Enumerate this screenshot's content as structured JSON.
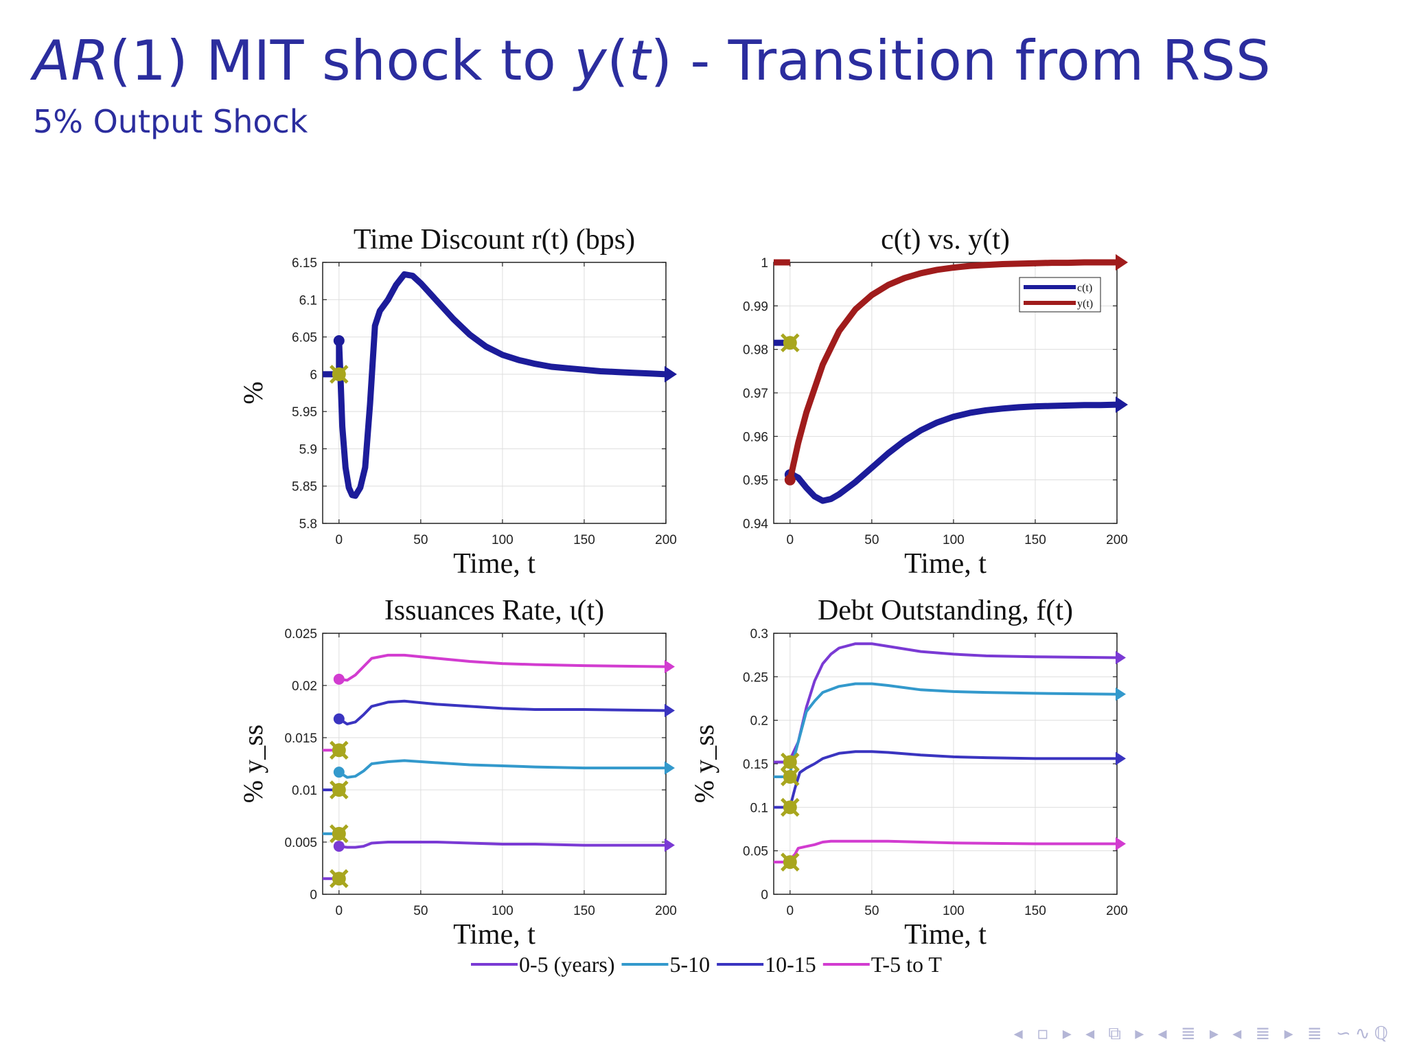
{
  "slide": {
    "title_prefix_math": "AR",
    "title_mid": "(1) MIT shock to ",
    "title_y": "y",
    "title_paren_open": "(",
    "title_t": "t",
    "title_paren_close": ")",
    "title_suffix": " - Transition from RSS",
    "subtitle": "5% Output Shock",
    "nav_symbols": "◂ ▫ ▸ ◂ ⧉ ▸ ◂ ≣ ▸ ◂ ≣ ▸   ≣   ∽∿ℚ"
  },
  "colors": {
    "title": "#2b2d9e",
    "navy": "#1c1c9a",
    "red": "#a01c1c",
    "olive": "#a8a61e",
    "purple": "#7a3ad4",
    "teal": "#3399cc",
    "indigo": "#3a34c0",
    "magenta": "#d23cd0",
    "grid": "#dedede"
  },
  "chart_data": [
    {
      "type": "line",
      "title": "Time Discount r(t) (bps)",
      "xlabel": "Time, t",
      "ylabel": "%",
      "xlim": [
        -10,
        200
      ],
      "ylim": [
        5.8,
        6.15
      ],
      "xticks": [
        "0",
        "50",
        "100",
        "150",
        "200"
      ],
      "yticks": [
        "5.8",
        "5.85",
        "5.9",
        "5.95",
        "6",
        "6.05",
        "6.1",
        "6.15"
      ],
      "grid": true,
      "series": [
        {
          "color_key": "navy",
          "x": [
            0,
            1,
            2,
            4,
            6,
            8,
            10,
            13,
            16,
            19,
            22,
            25,
            30,
            35,
            40,
            45,
            50,
            60,
            70,
            80,
            90,
            100,
            110,
            120,
            130,
            140,
            150,
            160,
            170,
            180,
            190,
            200
          ],
          "y": [
            6.045,
            5.99,
            5.93,
            5.875,
            5.848,
            5.838,
            5.837,
            5.848,
            5.875,
            5.96,
            6.065,
            6.085,
            6.1,
            6.12,
            6.134,
            6.132,
            6.122,
            6.098,
            6.074,
            6.053,
            6.037,
            6.026,
            6.019,
            6.014,
            6.01,
            6.008,
            6.006,
            6.004,
            6.003,
            6.002,
            6.001,
            6.0
          ],
          "pre_value": 6.0,
          "start_marker": 6.045,
          "ss_marker": 6.0
        }
      ]
    },
    {
      "type": "line",
      "title": "c(t) vs. y(t)",
      "xlabel": "Time, t",
      "xlim": [
        -10,
        200
      ],
      "ylim": [
        0.94,
        1.0
      ],
      "xticks": [
        "0",
        "50",
        "100",
        "150",
        "200"
      ],
      "yticks": [
        "0.94",
        "0.95",
        "0.96",
        "0.97",
        "0.98",
        "0.99",
        "1"
      ],
      "grid": true,
      "legend_position": "top-right",
      "series": [
        {
          "name": "c(t)",
          "color_key": "navy",
          "x": [
            0,
            5,
            10,
            15,
            20,
            25,
            30,
            40,
            50,
            60,
            70,
            80,
            90,
            100,
            110,
            120,
            130,
            140,
            150,
            160,
            170,
            180,
            190,
            200
          ],
          "y": [
            0.9515,
            0.9505,
            0.9482,
            0.9462,
            0.9452,
            0.9456,
            0.9467,
            0.9495,
            0.9528,
            0.9561,
            0.959,
            0.9614,
            0.9632,
            0.9645,
            0.9654,
            0.966,
            0.9664,
            0.9667,
            0.9669,
            0.967,
            0.9671,
            0.9672,
            0.9672,
            0.9673
          ],
          "pre_value": 0.9815,
          "start_marker": 0.9512
        },
        {
          "name": "y(t)",
          "color_key": "red",
          "x": [
            0,
            5,
            10,
            20,
            30,
            40,
            50,
            60,
            70,
            80,
            90,
            100,
            110,
            120,
            130,
            140,
            150,
            160,
            170,
            180,
            190,
            200
          ],
          "y": [
            0.95,
            0.9585,
            0.9655,
            0.9765,
            0.9842,
            0.9892,
            0.9925,
            0.9948,
            0.9964,
            0.9975,
            0.9983,
            0.9988,
            0.9992,
            0.9994,
            0.9996,
            0.9997,
            0.9998,
            0.9999,
            0.9999,
            1.0,
            1.0,
            1.0
          ],
          "pre_value": 1.0,
          "start_marker": 0.95
        }
      ],
      "ss_marker": 0.9815
    },
    {
      "type": "line",
      "title": "Issuances Rate, ι(t)",
      "xlabel": "Time, t",
      "ylabel": "% y_ss",
      "xlim": [
        -10,
        200
      ],
      "ylim": [
        0,
        0.025
      ],
      "xticks": [
        "0",
        "50",
        "100",
        "150",
        "200"
      ],
      "yticks": [
        "0",
        "0.005",
        "0.01",
        "0.015",
        "0.02",
        "0.025"
      ],
      "grid": true,
      "series": [
        {
          "name": "0-5 (years)",
          "color_key": "purple",
          "x": [
            0,
            5,
            10,
            15,
            20,
            30,
            40,
            60,
            80,
            100,
            120,
            150,
            200
          ],
          "y": [
            0.0046,
            0.0045,
            0.0045,
            0.0046,
            0.0049,
            0.005,
            0.005,
            0.005,
            0.0049,
            0.0048,
            0.0048,
            0.0047,
            0.0047
          ],
          "pre_value": 0.0015,
          "start_marker": 0.0046,
          "ss_marker": 0.0015
        },
        {
          "name": "5-10",
          "color_key": "teal",
          "x": [
            0,
            5,
            10,
            15,
            20,
            30,
            40,
            60,
            80,
            100,
            120,
            150,
            200
          ],
          "y": [
            0.0117,
            0.0112,
            0.0113,
            0.0118,
            0.0125,
            0.0127,
            0.0128,
            0.0126,
            0.0124,
            0.0123,
            0.0122,
            0.0121,
            0.0121
          ],
          "pre_value": 0.0058,
          "start_marker": 0.0117,
          "ss_marker": 0.0058
        },
        {
          "name": "10-15",
          "color_key": "indigo",
          "x": [
            0,
            5,
            10,
            15,
            20,
            30,
            40,
            60,
            80,
            100,
            120,
            150,
            200
          ],
          "y": [
            0.0168,
            0.0163,
            0.0165,
            0.0172,
            0.018,
            0.0184,
            0.0185,
            0.0182,
            0.018,
            0.0178,
            0.0177,
            0.0177,
            0.0176
          ],
          "pre_value": 0.01,
          "start_marker": 0.0168,
          "ss_marker": 0.01
        },
        {
          "name": "T-5 to T",
          "color_key": "magenta",
          "x": [
            0,
            5,
            10,
            15,
            20,
            30,
            40,
            60,
            80,
            100,
            120,
            150,
            200
          ],
          "y": [
            0.0206,
            0.0205,
            0.021,
            0.0218,
            0.0226,
            0.0229,
            0.0229,
            0.0226,
            0.0223,
            0.0221,
            0.022,
            0.0219,
            0.0218
          ],
          "pre_value": 0.0138,
          "start_marker": 0.0206,
          "ss_marker": 0.0138
        }
      ]
    },
    {
      "type": "line",
      "title": "Debt Outstanding, f(t)",
      "xlabel": "Time, t",
      "ylabel": "% y_ss",
      "xlim": [
        -10,
        200
      ],
      "ylim": [
        0,
        0.3
      ],
      "xticks": [
        "0",
        "50",
        "100",
        "150",
        "200"
      ],
      "yticks": [
        "0",
        "0.05",
        "0.1",
        "0.15",
        "0.2",
        "0.25",
        "0.3"
      ],
      "grid": true,
      "series": [
        {
          "name": "0-5 (years)",
          "color_key": "purple",
          "x": [
            0,
            5,
            10,
            15,
            20,
            25,
            30,
            40,
            50,
            60,
            80,
            100,
            120,
            150,
            200
          ],
          "y": [
            0.155,
            0.175,
            0.215,
            0.245,
            0.265,
            0.276,
            0.283,
            0.288,
            0.288,
            0.285,
            0.279,
            0.276,
            0.274,
            0.273,
            0.272
          ],
          "pre_value": 0.152,
          "ss_marker": 0.152
        },
        {
          "name": "5-10",
          "color_key": "teal",
          "x": [
            0,
            5,
            10,
            15,
            20,
            30,
            40,
            50,
            60,
            80,
            100,
            120,
            150,
            200
          ],
          "y": [
            0.14,
            0.175,
            0.21,
            0.222,
            0.232,
            0.239,
            0.242,
            0.242,
            0.24,
            0.235,
            0.233,
            0.232,
            0.231,
            0.23
          ],
          "pre_value": 0.135,
          "ss_marker": 0.135
        },
        {
          "name": "10-15",
          "color_key": "indigo",
          "x": [
            0,
            3,
            6,
            10,
            15,
            20,
            30,
            40,
            50,
            60,
            80,
            100,
            120,
            150,
            200
          ],
          "y": [
            0.1,
            0.122,
            0.14,
            0.145,
            0.15,
            0.156,
            0.162,
            0.164,
            0.164,
            0.163,
            0.16,
            0.158,
            0.157,
            0.156,
            0.156
          ],
          "pre_value": 0.1,
          "ss_marker": 0.1
        },
        {
          "name": "T-5 to T",
          "color_key": "magenta",
          "x": [
            0,
            3,
            5,
            10,
            15,
            20,
            25,
            40,
            60,
            80,
            100,
            150,
            200
          ],
          "y": [
            0.04,
            0.046,
            0.053,
            0.055,
            0.057,
            0.06,
            0.061,
            0.061,
            0.061,
            0.06,
            0.059,
            0.058,
            0.058
          ],
          "pre_value": 0.037,
          "ss_marker": 0.037
        }
      ]
    }
  ],
  "bottom_legend": [
    {
      "label": "0-5 (years)",
      "color_key": "purple"
    },
    {
      "label": "5-10",
      "color_key": "teal"
    },
    {
      "label": "10-15",
      "color_key": "indigo"
    },
    {
      "label": "T-5 to T",
      "color_key": "magenta"
    }
  ]
}
